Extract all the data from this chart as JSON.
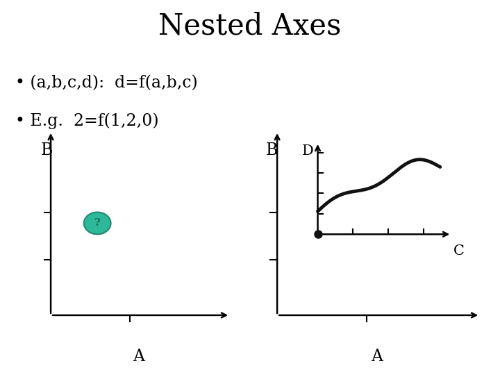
{
  "title": "Nested Axes",
  "title_fontsize": 30,
  "bg_color": "#ffffff",
  "bullet1": "(a,b,c,d):  d=f(a,b,c)",
  "bullet2": "E.g.  2=f(1,2,0)",
  "bullet_fontsize": 17,
  "label_B_fontsize": 17,
  "label_A_fontsize": 17,
  "label_CD_fontsize": 15,
  "question_mark_color": "#2db89a",
  "question_mark_edge": "#228870",
  "question_mark_text": "?",
  "qm_text_color": "#1a6b58",
  "line_color": "#111111",
  "dot_color": "#111111"
}
